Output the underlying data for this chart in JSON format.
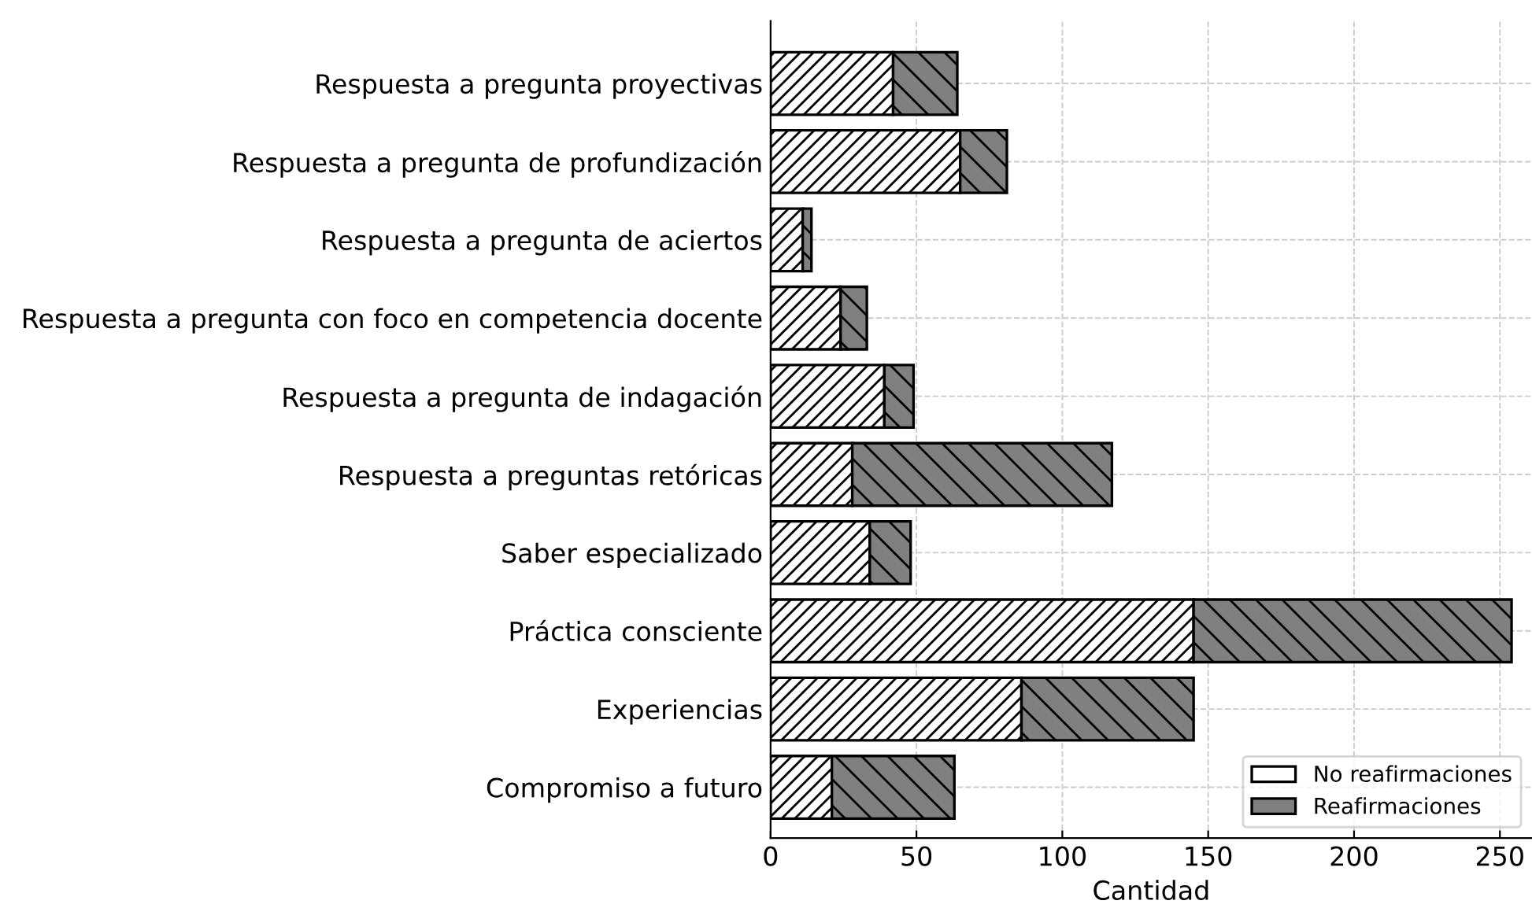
{
  "chart_data": {
    "type": "bar",
    "orientation": "horizontal",
    "stacked": true,
    "xlabel": "Cantidad",
    "categories": [
      "Respuesta a pregunta proyectivas",
      "Respuesta a pregunta de profundización",
      "Respuesta a pregunta de aciertos",
      "Respuesta a pregunta con foco en competencia docente",
      "Respuesta a pregunta de indagación",
      "Respuesta a preguntas retóricas",
      "Saber especializado",
      "Práctica consciente",
      "Experiencias",
      "Compromiso a futuro"
    ],
    "series": [
      {
        "name": "No reafirmaciones",
        "color": "#ffffff",
        "values": [
          42,
          65,
          11,
          24,
          39,
          28,
          34,
          145,
          86,
          21
        ]
      },
      {
        "name": "Reafirmaciones",
        "color": "#808080",
        "values": [
          22,
          16,
          3,
          9,
          10,
          89,
          14,
          109,
          59,
          42
        ]
      }
    ],
    "xlim": [
      0,
      261
    ],
    "xticks": [
      0,
      50,
      100,
      150,
      200,
      250
    ],
    "grid": true,
    "legend": "bottom right"
  }
}
